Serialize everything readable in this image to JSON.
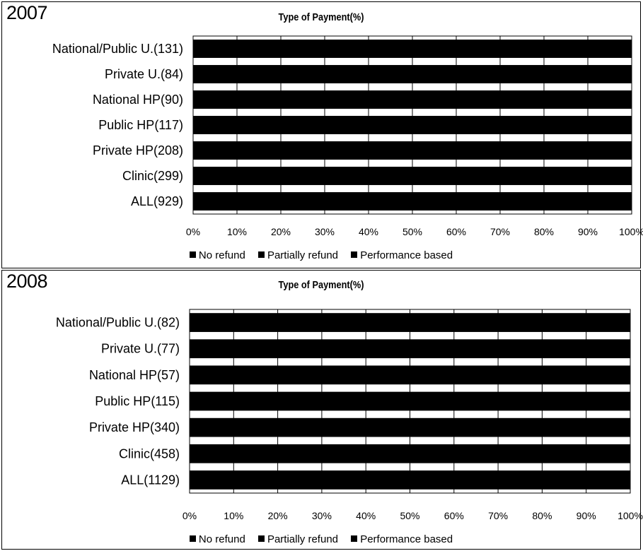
{
  "chart_data": [
    {
      "type": "bar",
      "orientation": "horizontal",
      "stacked": true,
      "year_label": "2007",
      "title": "Type of Payment(%)",
      "categories": [
        "National/Public U.(131)",
        "Private U.(84)",
        "National HP(90)",
        "Public HP(117)",
        "Private HP(208)",
        "Clinic(299)",
        "ALL(929)"
      ],
      "x_ticks": [
        "0%",
        "10%",
        "20%",
        "30%",
        "40%",
        "50%",
        "60%",
        "70%",
        "80%",
        "90%",
        "100%"
      ],
      "xlim": [
        0,
        100
      ],
      "series": [
        {
          "name": "No refund",
          "color": "#000000",
          "values": [
            100,
            100,
            100,
            100,
            100,
            100,
            100
          ]
        },
        {
          "name": "Partially refund",
          "color": "#000000",
          "values": [
            0,
            0,
            0,
            0,
            0,
            0,
            0
          ]
        },
        {
          "name": "Performance based",
          "color": "#000000",
          "values": [
            0,
            0,
            0,
            0,
            0,
            0,
            0
          ]
        }
      ],
      "legend_position": "bottom",
      "grid": "vertical"
    },
    {
      "type": "bar",
      "orientation": "horizontal",
      "stacked": true,
      "year_label": "2008",
      "title": "Type of Payment(%)",
      "categories": [
        "National/Public U.(82)",
        "Private U.(77)",
        "National HP(57)",
        "Public HP(115)",
        "Private HP(340)",
        "Clinic(458)",
        "ALL(1129)"
      ],
      "x_ticks": [
        "0%",
        "10%",
        "20%",
        "30%",
        "40%",
        "50%",
        "60%",
        "70%",
        "80%",
        "90%",
        "100%"
      ],
      "xlim": [
        0,
        100
      ],
      "series": [
        {
          "name": "No refund",
          "color": "#000000",
          "values": [
            100,
            100,
            100,
            100,
            100,
            100,
            100
          ]
        },
        {
          "name": "Partially refund",
          "color": "#000000",
          "values": [
            0,
            0,
            0,
            0,
            0,
            0,
            0
          ]
        },
        {
          "name": "Performance based",
          "color": "#000000",
          "values": [
            0,
            0,
            0,
            0,
            0,
            0,
            0
          ]
        }
      ],
      "legend_position": "bottom",
      "grid": "vertical"
    }
  ]
}
